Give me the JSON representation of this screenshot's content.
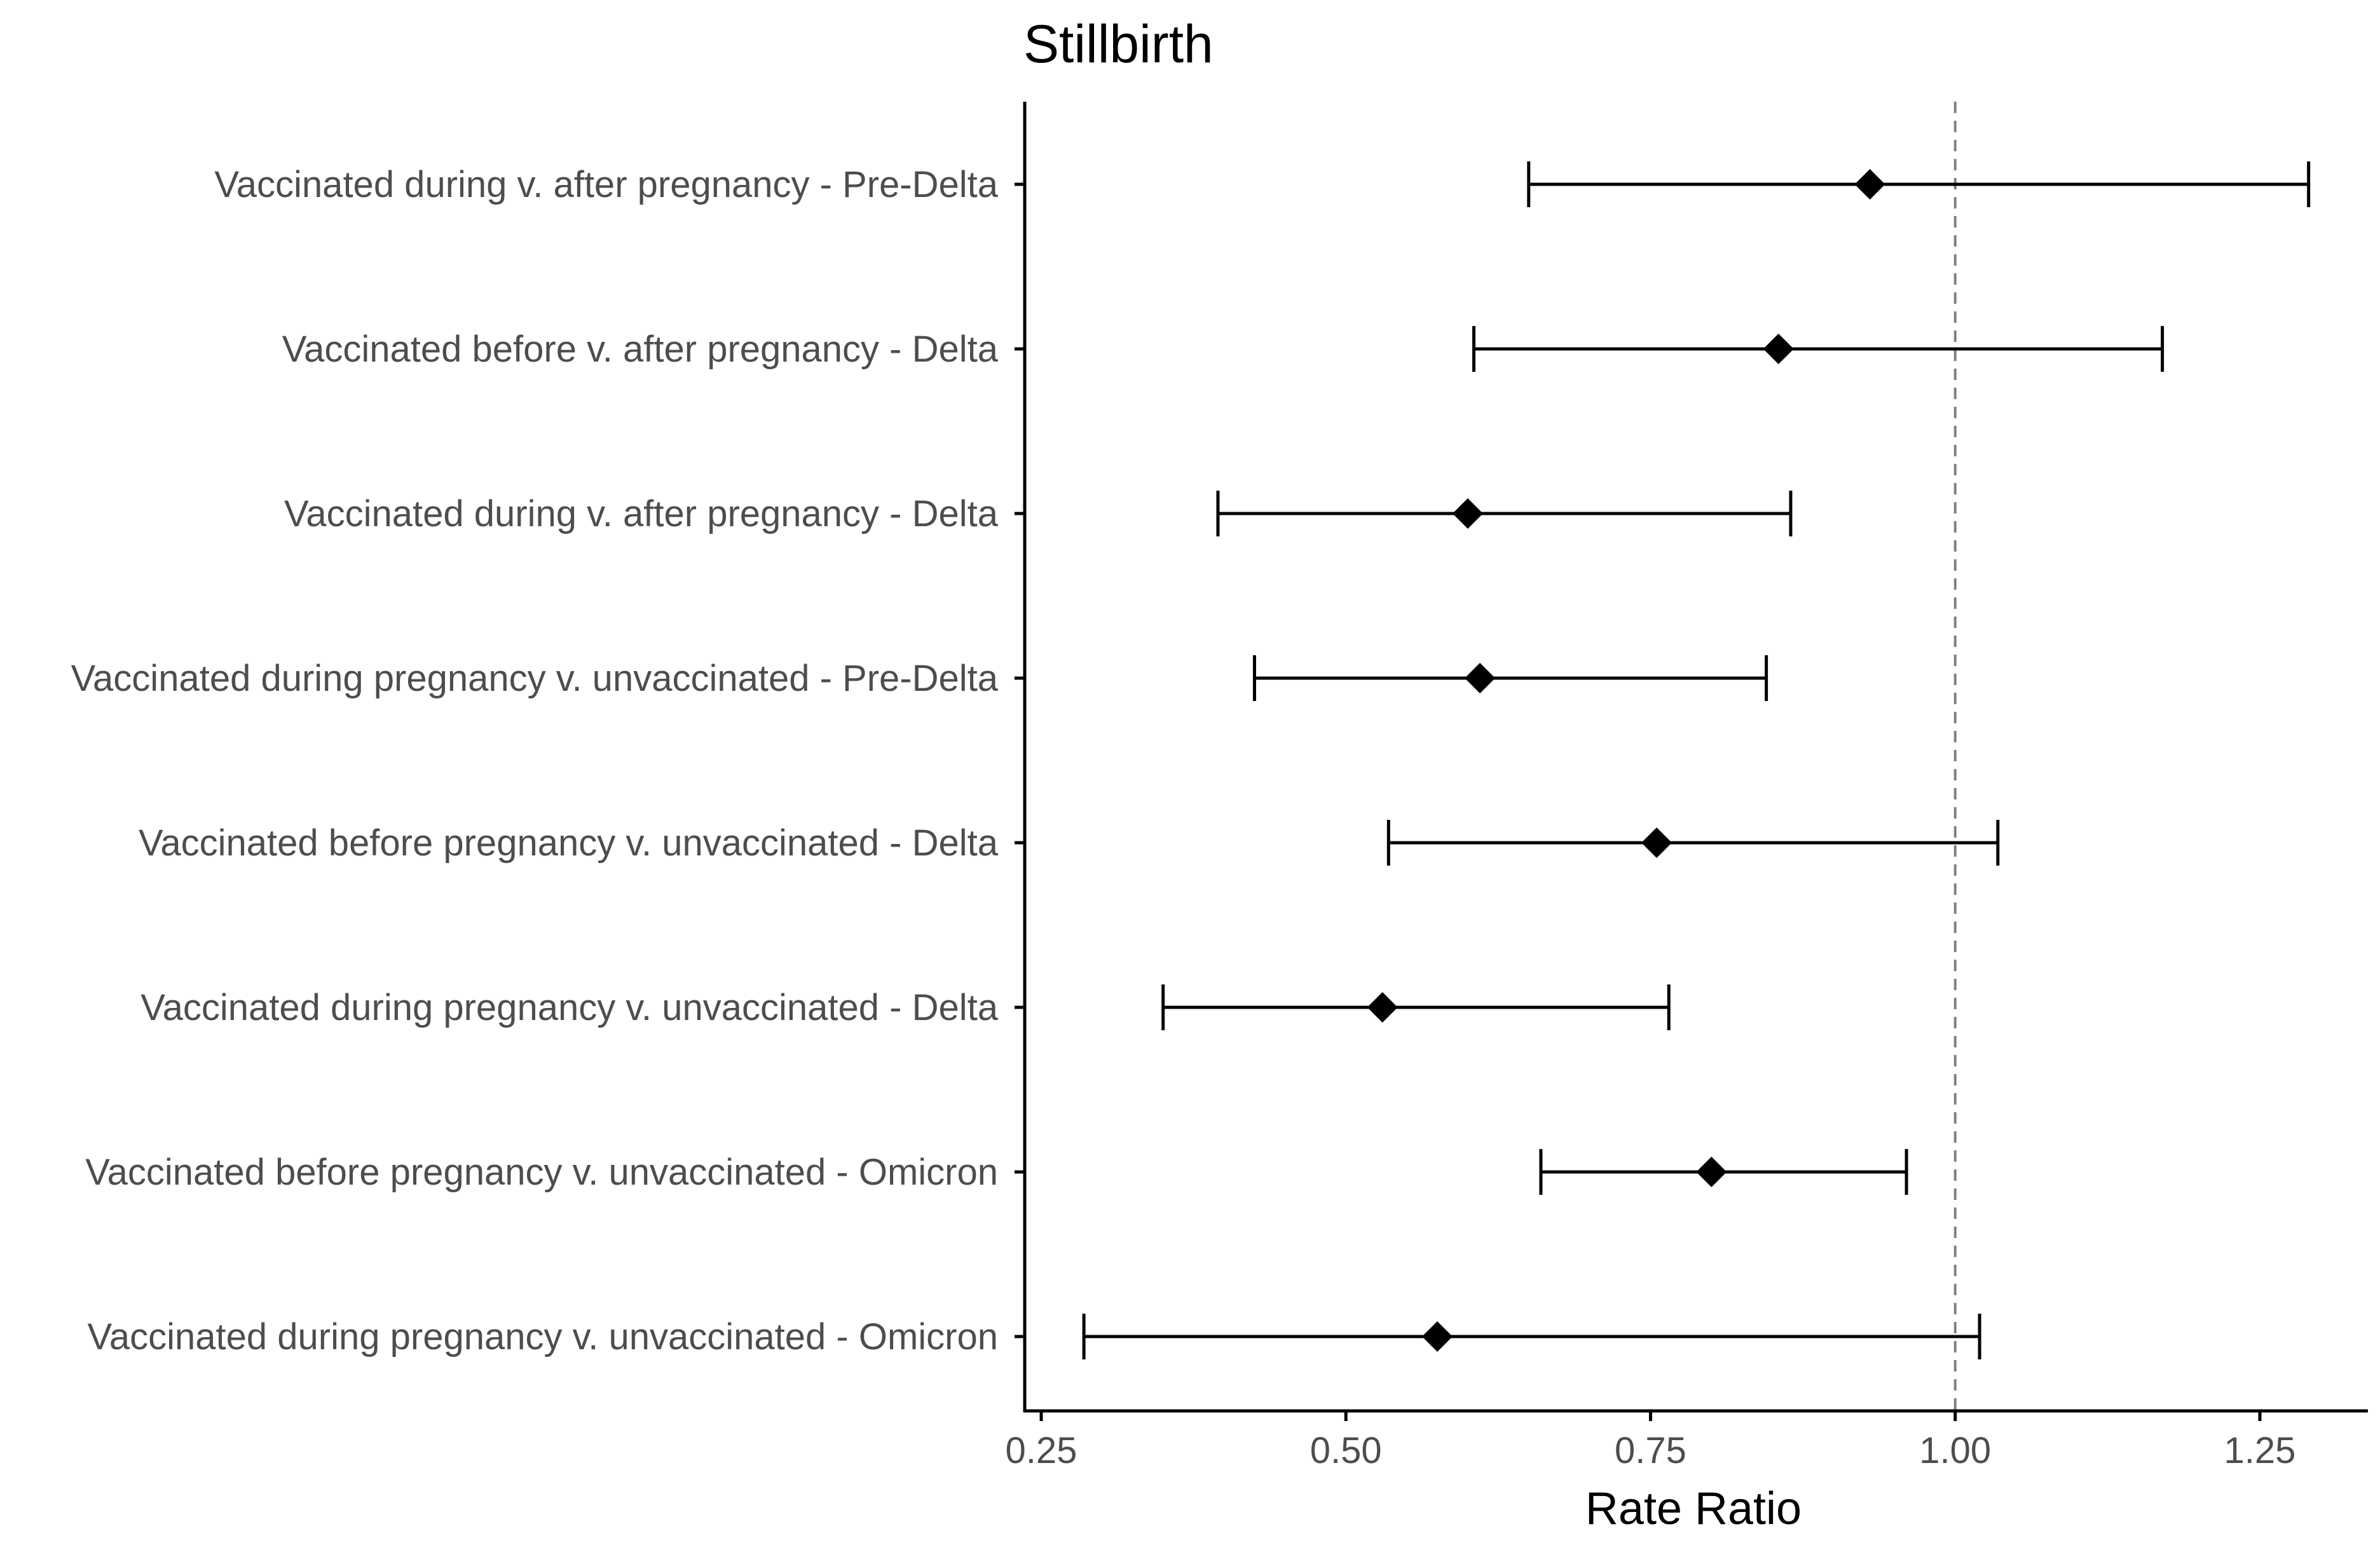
{
  "chart_data": {
    "type": "forest",
    "title": "Stillbirth",
    "xlabel": "Rate Ratio",
    "ylabel": "",
    "xlim": [
      0.24,
      1.35
    ],
    "x_ticks": [
      0.25,
      0.5,
      0.75,
      1.0
    ],
    "x_tick_labels": [
      "0.25",
      "0.50",
      "0.75",
      "1.00"
    ],
    "x_ticks_extra": [
      1.25
    ],
    "x_tick_labels_extra": [
      "1.25"
    ],
    "reference_line": {
      "x": 1.0,
      "style": "dashed",
      "color": "#808080"
    },
    "grid": false,
    "marker": "diamond",
    "colors": {
      "mark": "#000000",
      "axis": "#000000",
      "ref": "#808080"
    },
    "rows": [
      {
        "label": "Vaccinated during v. after pregnancy - Pre-Delta",
        "estimate": 0.93,
        "lower": 0.65,
        "upper": 1.29
      },
      {
        "label": "Vaccinated before v. after pregnancy - Delta",
        "estimate": 0.855,
        "lower": 0.605,
        "upper": 1.17
      },
      {
        "label": "Vaccinated during v. after pregnancy - Delta",
        "estimate": 0.6,
        "lower": 0.395,
        "upper": 0.865
      },
      {
        "label": "Vaccinated during pregnancy v. unvaccinated - Pre-Delta",
        "estimate": 0.61,
        "lower": 0.425,
        "upper": 0.845
      },
      {
        "label": "Vaccinated before pregnancy v. unvaccinated - Delta",
        "estimate": 0.755,
        "lower": 0.535,
        "upper": 1.035
      },
      {
        "label": "Vaccinated during pregnancy v. unvaccinated - Delta",
        "estimate": 0.53,
        "lower": 0.35,
        "upper": 0.765
      },
      {
        "label": "Vaccinated before pregnancy v. unvaccinated - Omicron",
        "estimate": 0.8,
        "lower": 0.66,
        "upper": 0.96
      },
      {
        "label": "Vaccinated during pregnancy v. unvaccinated - Omicron",
        "estimate": 0.575,
        "lower": 0.285,
        "upper": 1.02
      }
    ]
  }
}
